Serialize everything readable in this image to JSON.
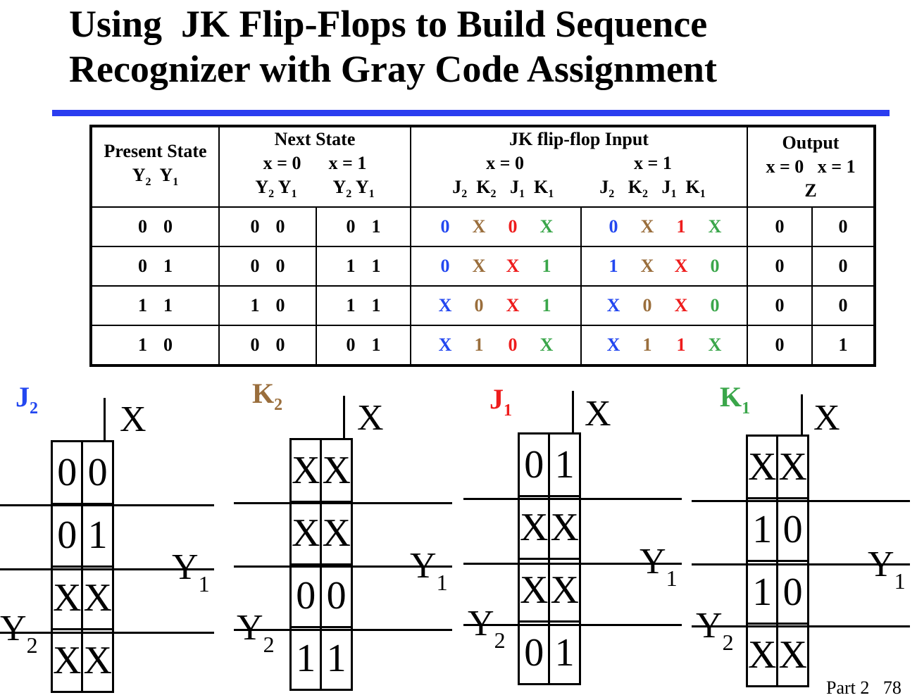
{
  "title_lines": [
    "Using  JK Flip-Flops to Build Sequence",
    "Recognizer with Gray Code Assignment"
  ],
  "colors": {
    "rule": "#2b3df0",
    "J2": "#2347f0",
    "K2": "#9a6e3c",
    "J1": "#ee1c1c",
    "K1": "#3aa64a"
  },
  "table": {
    "header": {
      "present_state": "Present State",
      "present_bits": [
        "Y",
        "2",
        "Y",
        "1"
      ],
      "next_state": "Next State",
      "x0": "x = 0",
      "x1": "x = 1",
      "jk_input": "JK flip-flop Input",
      "output": "Output",
      "output_x": "x = 0   x = 1",
      "output_z": "Z"
    },
    "rows": [
      {
        "present": [
          "0",
          "0"
        ],
        "next_x0": [
          "0",
          "0"
        ],
        "next_x1": [
          "0",
          "1"
        ],
        "jk_x0": [
          "0",
          "X",
          "0",
          "X"
        ],
        "jk_x1": [
          "0",
          "X",
          "1",
          "X"
        ],
        "z": [
          "0",
          "0"
        ]
      },
      {
        "present": [
          "0",
          "1"
        ],
        "next_x0": [
          "0",
          "0"
        ],
        "next_x1": [
          "1",
          "1"
        ],
        "jk_x0": [
          "0",
          "X",
          "X",
          "1"
        ],
        "jk_x1": [
          "1",
          "X",
          "X",
          "0"
        ],
        "z": [
          "0",
          "0"
        ]
      },
      {
        "present": [
          "1",
          "1"
        ],
        "next_x0": [
          "1",
          "0"
        ],
        "next_x1": [
          "1",
          "1"
        ],
        "jk_x0": [
          "X",
          "0",
          "X",
          "1"
        ],
        "jk_x1": [
          "X",
          "0",
          "X",
          "0"
        ],
        "z": [
          "0",
          "0"
        ]
      },
      {
        "present": [
          "1",
          "0"
        ],
        "next_x0": [
          "0",
          "0"
        ],
        "next_x1": [
          "0",
          "1"
        ],
        "jk_x0": [
          "X",
          "1",
          "0",
          "X"
        ],
        "jk_x1": [
          "X",
          "1",
          "1",
          "X"
        ],
        "z": [
          "0",
          "1"
        ]
      }
    ]
  },
  "kmaps": [
    {
      "name": "J",
      "sub": "2",
      "color_key": "J2",
      "cells": [
        [
          "0",
          "0"
        ],
        [
          "0",
          "1"
        ],
        [
          "X",
          "X"
        ],
        [
          "X",
          "X"
        ]
      ]
    },
    {
      "name": "K",
      "sub": "2",
      "color_key": "K2",
      "cells": [
        [
          "X",
          "X"
        ],
        [
          "X",
          "X"
        ],
        [
          "0",
          "0"
        ],
        [
          "1",
          "1"
        ]
      ]
    },
    {
      "name": "J",
      "sub": "1",
      "color_key": "J1",
      "cells": [
        [
          "0",
          "1"
        ],
        [
          "X",
          "X"
        ],
        [
          "X",
          "X"
        ],
        [
          "0",
          "1"
        ]
      ]
    },
    {
      "name": "K",
      "sub": "1",
      "color_key": "K1",
      "cells": [
        [
          "X",
          "X"
        ],
        [
          "1",
          "0"
        ],
        [
          "1",
          "0"
        ],
        [
          "X",
          "X"
        ]
      ]
    }
  ],
  "kmap_labels": {
    "x": "X",
    "y1": "Y",
    "y1_sub": "1",
    "y2": "Y",
    "y2_sub": "2"
  },
  "footer": "Part 2   78"
}
